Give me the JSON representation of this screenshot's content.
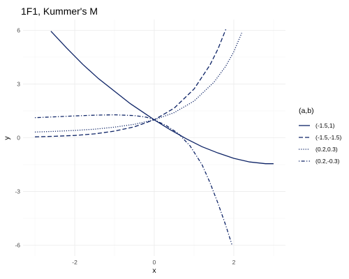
{
  "chart_data": {
    "type": "line",
    "title": "1F1, Kummer's M",
    "xlabel": "x",
    "ylabel": "y",
    "xlim": [
      -3.3,
      3.3
    ],
    "ylim": [
      -6.6,
      6.6
    ],
    "x_ticks": [
      -2,
      0,
      2
    ],
    "y_ticks": [
      -6,
      -3,
      0,
      3,
      6
    ],
    "x_tick_labels": [
      "-2",
      "0",
      "2"
    ],
    "y_tick_labels": [
      "-6",
      "-3",
      "0",
      "3",
      "6"
    ],
    "grid": true,
    "legend": {
      "title": "(a,b)",
      "position": "right"
    },
    "line_color": "#0d2366",
    "series": [
      {
        "name": "(-1.5,1)",
        "dash": "solid",
        "x": [
          -2.6,
          -2.2,
          -1.8,
          -1.4,
          -1.0,
          -0.6,
          -0.2,
          0.0,
          0.4,
          0.8,
          1.2,
          1.6,
          2.0,
          2.4,
          2.8,
          3.0
        ],
        "y": [
          5.95,
          5.0,
          4.1,
          3.3,
          2.6,
          1.9,
          1.3,
          1.0,
          0.45,
          -0.05,
          -0.5,
          -0.85,
          -1.15,
          -1.35,
          -1.45,
          -1.45
        ]
      },
      {
        "name": "(-1.5,-1.5)",
        "dash": "dashed",
        "x": [
          -3.0,
          -2.5,
          -2.0,
          -1.5,
          -1.0,
          -0.5,
          0.0,
          0.5,
          1.0,
          1.4,
          1.6,
          1.8
        ],
        "y": [
          0.05,
          0.08,
          0.13,
          0.22,
          0.37,
          0.61,
          1.0,
          1.65,
          2.72,
          4.06,
          4.95,
          6.05
        ]
      },
      {
        "name": "(0.2,0.3)",
        "dash": "dotted",
        "x": [
          -3.0,
          -2.5,
          -2.0,
          -1.5,
          -1.0,
          -0.5,
          0.0,
          0.5,
          1.0,
          1.5,
          1.8,
          2.0,
          2.2
        ],
        "y": [
          0.32,
          0.36,
          0.41,
          0.48,
          0.59,
          0.75,
          1.0,
          1.4,
          2.05,
          3.1,
          4.0,
          4.8,
          5.85
        ]
      },
      {
        "name": "(0.2,-0.3)",
        "dash": "dotdash",
        "x": [
          -3.0,
          -2.5,
          -2.0,
          -1.5,
          -1.0,
          -0.5,
          -0.2,
          0.0,
          0.3,
          0.6,
          0.9,
          1.2,
          1.4,
          1.6,
          1.8,
          1.95
        ],
        "y": [
          1.12,
          1.17,
          1.22,
          1.26,
          1.28,
          1.24,
          1.15,
          1.0,
          0.68,
          0.25,
          -0.45,
          -1.5,
          -2.5,
          -3.65,
          -4.9,
          -5.95
        ]
      }
    ]
  }
}
